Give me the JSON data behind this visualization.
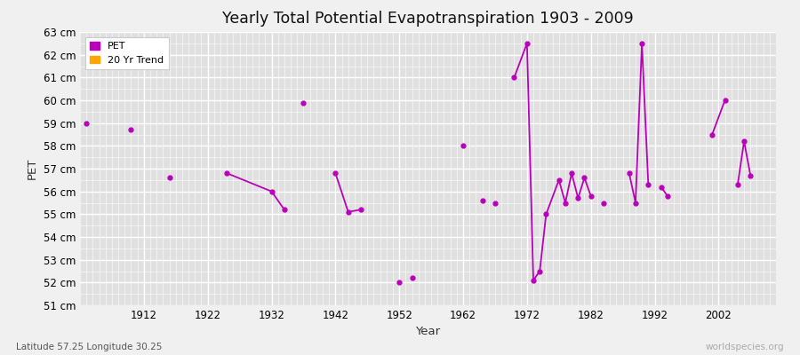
{
  "title": "Yearly Total Potential Evapotranspiration 1903 - 2009",
  "xlabel": "Year",
  "ylabel": "PET",
  "subtitle_lat_lon": "Latitude 57.25 Longitude 30.25",
  "watermark": "worldspecies.org",
  "ylim": [
    51,
    63
  ],
  "xlim": [
    1902,
    2011
  ],
  "ytick_labels": [
    "51 cm",
    "52 cm",
    "53 cm",
    "54 cm",
    "55 cm",
    "56 cm",
    "57 cm",
    "58 cm",
    "59 cm",
    "60 cm",
    "61 cm",
    "62 cm",
    "63 cm"
  ],
  "ytick_values": [
    51,
    52,
    53,
    54,
    55,
    56,
    57,
    58,
    59,
    60,
    61,
    62,
    63
  ],
  "xtick_values": [
    1912,
    1922,
    1932,
    1942,
    1952,
    1962,
    1972,
    1982,
    1992,
    2002
  ],
  "pet_color": "#bb00bb",
  "trend_color": "#ffa500",
  "bg_color": "#f0f0f0",
  "plot_bg_color": "#e0e0e0",
  "grid_color": "#ffffff",
  "pet_data": [
    [
      1903,
      59.0
    ],
    [
      1910,
      58.7
    ],
    [
      1916,
      56.6
    ],
    [
      1925,
      56.8
    ],
    [
      1932,
      56.0
    ],
    [
      1934,
      55.2
    ],
    [
      1937,
      59.9
    ],
    [
      1942,
      56.8
    ],
    [
      1944,
      55.1
    ],
    [
      1946,
      55.2
    ],
    [
      1952,
      52.0
    ],
    [
      1954,
      52.2
    ],
    [
      1962,
      58.0
    ],
    [
      1965,
      55.6
    ],
    [
      1967,
      55.5
    ],
    [
      1970,
      61.0
    ],
    [
      1972,
      62.5
    ],
    [
      1973,
      52.1
    ],
    [
      1974,
      52.5
    ],
    [
      1975,
      55.0
    ],
    [
      1977,
      56.5
    ],
    [
      1978,
      55.5
    ],
    [
      1979,
      56.8
    ],
    [
      1980,
      55.7
    ],
    [
      1981,
      56.6
    ],
    [
      1982,
      55.8
    ],
    [
      1984,
      55.5
    ],
    [
      1988,
      56.8
    ],
    [
      1989,
      55.5
    ],
    [
      1990,
      62.5
    ],
    [
      1991,
      56.3
    ],
    [
      1993,
      56.2
    ],
    [
      1994,
      55.8
    ],
    [
      2001,
      58.5
    ],
    [
      2003,
      60.0
    ],
    [
      2005,
      56.3
    ],
    [
      2006,
      58.2
    ],
    [
      2007,
      56.7
    ]
  ],
  "connected_segments": [
    [
      [
        1925,
        56.8
      ],
      [
        1932,
        56.0
      ],
      [
        1934,
        55.2
      ]
    ],
    [
      [
        1942,
        56.8
      ],
      [
        1944,
        55.1
      ],
      [
        1946,
        55.2
      ]
    ],
    [
      [
        1970,
        61.0
      ],
      [
        1972,
        62.5
      ],
      [
        1973,
        52.1
      ],
      [
        1974,
        52.5
      ],
      [
        1975,
        55.0
      ],
      [
        1977,
        56.5
      ],
      [
        1978,
        55.5
      ],
      [
        1979,
        56.8
      ],
      [
        1980,
        55.7
      ],
      [
        1981,
        56.6
      ],
      [
        1982,
        55.8
      ]
    ],
    [
      [
        1988,
        56.8
      ],
      [
        1989,
        55.5
      ],
      [
        1990,
        62.5
      ],
      [
        1991,
        56.3
      ]
    ],
    [
      [
        1993,
        56.2
      ],
      [
        1994,
        55.8
      ]
    ],
    [
      [
        2001,
        58.5
      ],
      [
        2003,
        60.0
      ]
    ],
    [
      [
        2005,
        56.3
      ],
      [
        2006,
        58.2
      ],
      [
        2007,
        56.7
      ]
    ]
  ]
}
